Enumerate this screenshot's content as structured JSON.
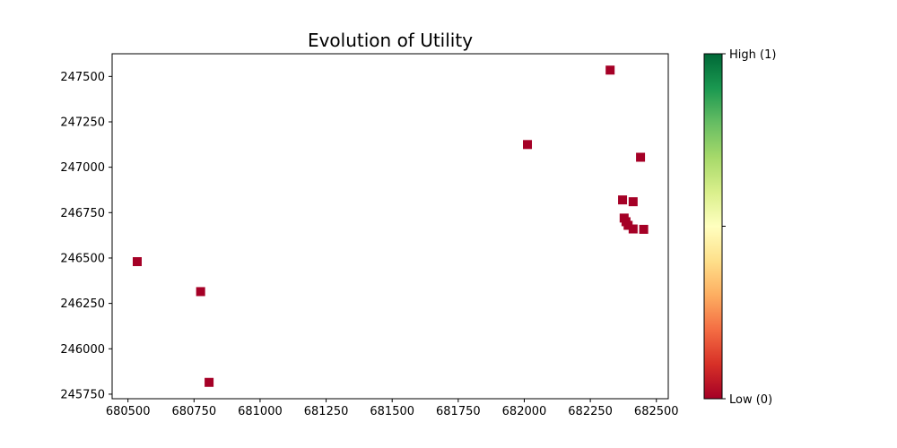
{
  "chart_data": {
    "type": "scatter",
    "title": "Evolution of Utility",
    "xlabel": "",
    "ylabel": "",
    "xlim": [
      680440,
      682545
    ],
    "ylim": [
      245725,
      247625
    ],
    "x_ticks": [
      680500,
      680750,
      681000,
      681250,
      681500,
      681750,
      682000,
      682250,
      682500
    ],
    "y_ticks": [
      245750,
      246000,
      246250,
      246500,
      246750,
      247000,
      247250,
      247500
    ],
    "marker": "square",
    "marker_color": "#a50026",
    "grid": false,
    "points": [
      {
        "x": 682325,
        "y": 247535
      },
      {
        "x": 682012,
        "y": 247125
      },
      {
        "x": 682440,
        "y": 247055
      },
      {
        "x": 682372,
        "y": 246820
      },
      {
        "x": 682412,
        "y": 246810
      },
      {
        "x": 682378,
        "y": 246720
      },
      {
        "x": 682385,
        "y": 246700
      },
      {
        "x": 682393,
        "y": 246680
      },
      {
        "x": 682412,
        "y": 246660
      },
      {
        "x": 682452,
        "y": 246658
      },
      {
        "x": 680535,
        "y": 246480
      },
      {
        "x": 680775,
        "y": 246315
      },
      {
        "x": 680807,
        "y": 245815
      }
    ],
    "colorbar": {
      "colormap": "RdYlGn",
      "range": [
        0,
        1
      ],
      "colors": [
        "#a50026",
        "#d73027",
        "#f46d43",
        "#fdae61",
        "#fee08b",
        "#ffffbf",
        "#d9ef8b",
        "#a6d96a",
        "#66bd63",
        "#1a9850",
        "#006837"
      ],
      "high_label": "High (1)",
      "low_label": "Low (0)"
    }
  }
}
